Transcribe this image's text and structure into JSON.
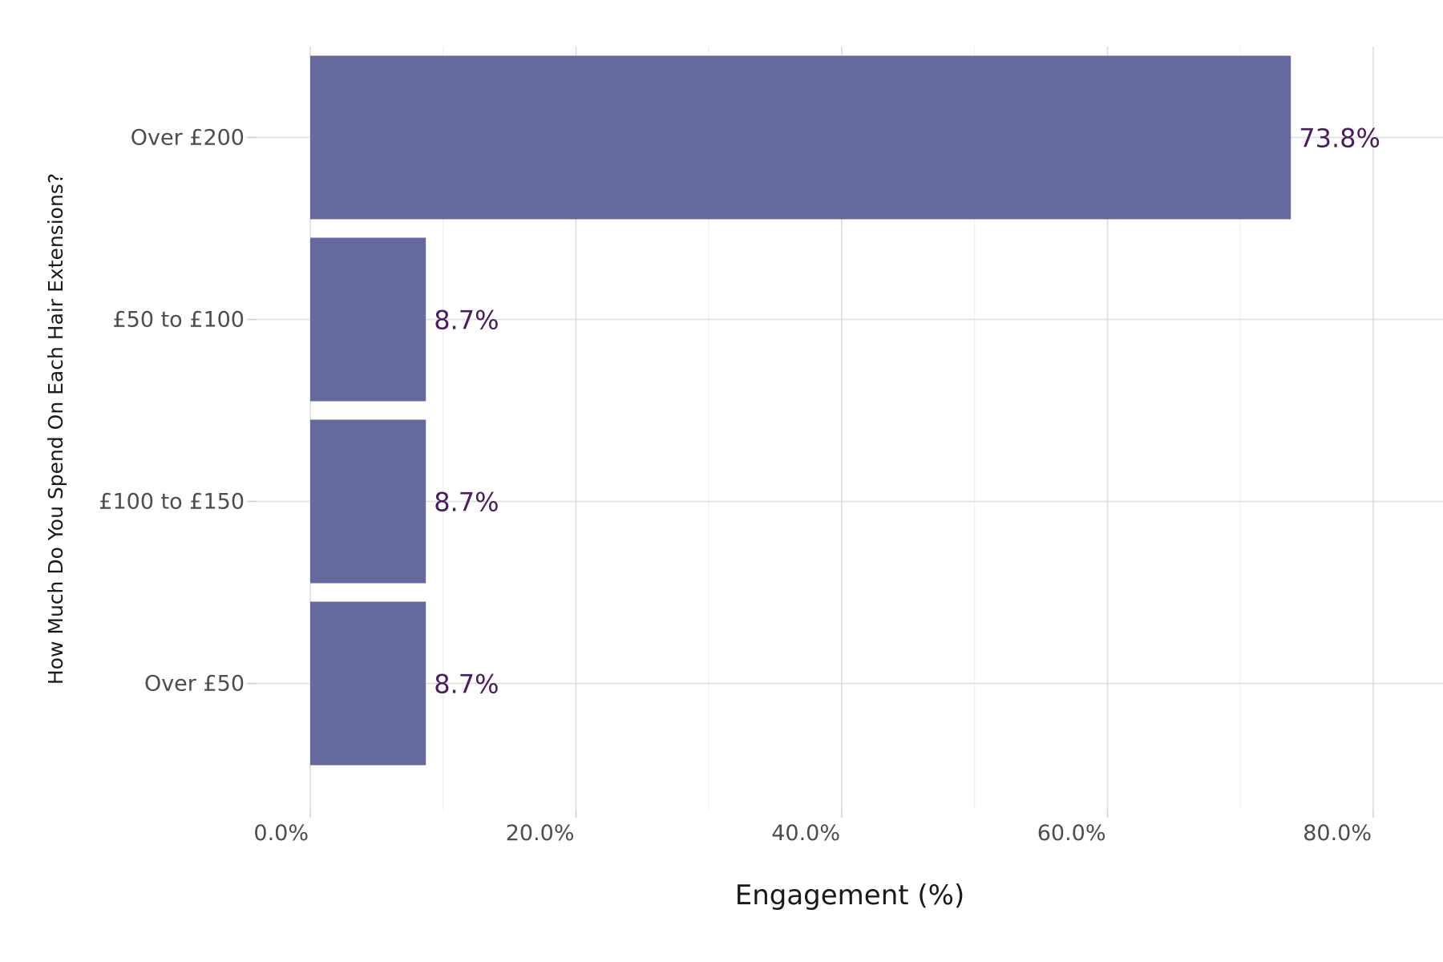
{
  "chart_data": {
    "type": "bar",
    "orientation": "horizontal",
    "categories": [
      "Over £200",
      "£50 to £100",
      "£100 to £150",
      "Over £50"
    ],
    "values": [
      73.8,
      8.7,
      8.7,
      8.7
    ],
    "data_labels": [
      "73.8%",
      "8.7%",
      "8.7%",
      "8.7%"
    ],
    "title": "",
    "xlabel": "Engagement (%)",
    "ylabel": "How Much Do You Spend On Each Hair Extensions?",
    "xlim": [
      0,
      80
    ],
    "x_ticks": [
      0,
      20,
      40,
      60,
      80
    ],
    "x_tick_labels": [
      "0.0%",
      "20.0%",
      "40.0%",
      "60.0%",
      "80.0%"
    ],
    "grid": true,
    "legend": "none",
    "colors": {
      "bar": "#65699d",
      "data_label": "#4b1d5e",
      "background": "#ffffff"
    }
  }
}
